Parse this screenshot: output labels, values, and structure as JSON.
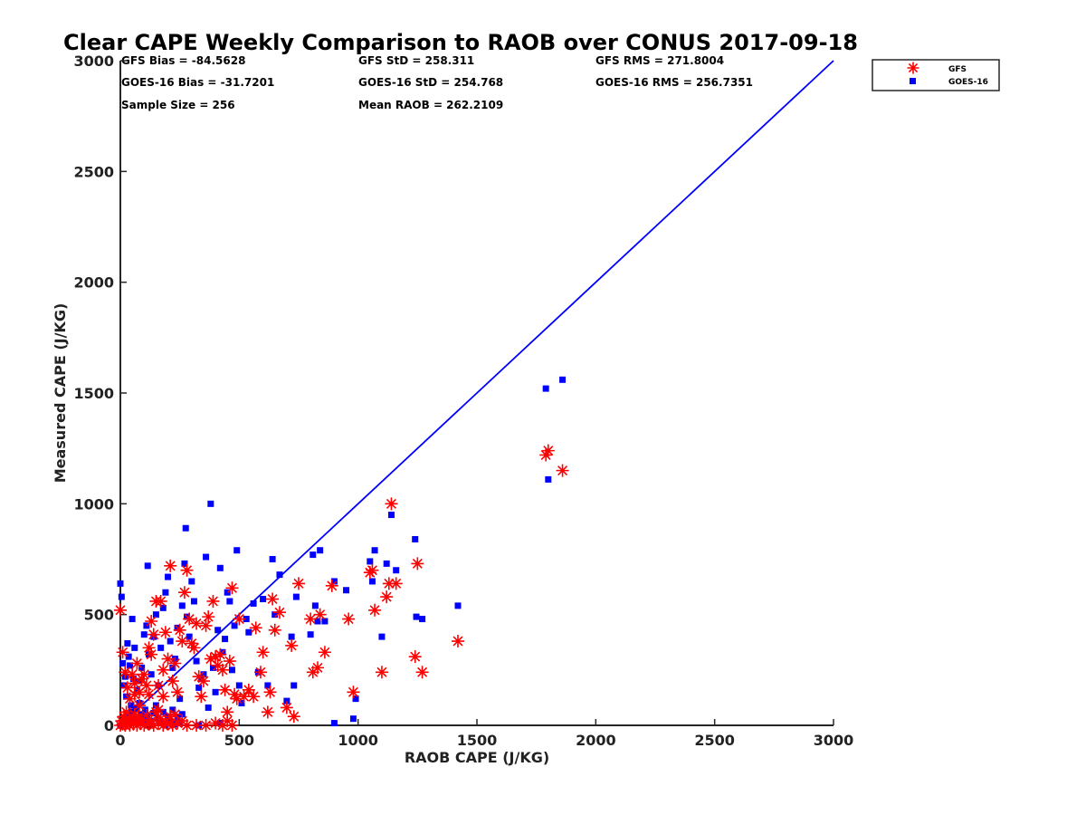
{
  "chart_data": {
    "type": "scatter",
    "title": "Clear CAPE Weekly Comparison to RAOB over CONUS 2017-09-18",
    "xlabel": "RAOB CAPE (J/KG)",
    "ylabel": "Measured CAPE (J/KG)",
    "xlim": [
      0,
      3000
    ],
    "ylim": [
      0,
      3000
    ],
    "xticks": [
      0,
      500,
      1000,
      1500,
      2000,
      2500,
      3000
    ],
    "yticks": [
      0,
      500,
      1000,
      1500,
      2000,
      2500,
      3000
    ],
    "reference_line": {
      "name": "1:1 line",
      "x": [
        0,
        3000
      ],
      "y": [
        0,
        3000
      ],
      "color": "#0000ff"
    },
    "stats": [
      "GFS Bias = -84.5628",
      "GFS StD = 258.311",
      "GFS RMS = 271.8004",
      "GOES-16 Bias = -31.7201",
      "GOES-16 StD = 254.768",
      "GOES-16 RMS = 256.7351",
      "Sample Size = 256",
      "Mean RAOB = 262.2109"
    ],
    "legend_position": "top-right",
    "series": [
      {
        "name": "GFS",
        "marker": "asterisk",
        "color": "#ff0000",
        "points": [
          [
            0,
            0
          ],
          [
            10,
            5
          ],
          [
            20,
            0
          ],
          [
            30,
            10
          ],
          [
            40,
            0
          ],
          [
            55,
            5
          ],
          [
            70,
            0
          ],
          [
            85,
            10
          ],
          [
            100,
            0
          ],
          [
            120,
            5
          ],
          [
            140,
            0
          ],
          [
            160,
            10
          ],
          [
            180,
            0
          ],
          [
            200,
            5
          ],
          [
            220,
            0
          ],
          [
            240,
            10
          ],
          [
            5,
            20
          ],
          [
            15,
            40
          ],
          [
            25,
            60
          ],
          [
            35,
            30
          ],
          [
            45,
            15
          ],
          [
            60,
            50
          ],
          [
            75,
            35
          ],
          [
            90,
            25
          ],
          [
            110,
            45
          ],
          [
            130,
            20
          ],
          [
            150,
            60
          ],
          [
            170,
            30
          ],
          [
            190,
            15
          ],
          [
            210,
            40
          ],
          [
            230,
            50
          ],
          [
            260,
            20
          ],
          [
            280,
            0
          ],
          [
            320,
            0
          ],
          [
            360,
            0
          ],
          [
            400,
            10
          ],
          [
            430,
            0
          ],
          [
            450,
            20
          ],
          [
            470,
            0
          ],
          [
            0,
            520
          ],
          [
            10,
            330
          ],
          [
            20,
            240
          ],
          [
            30,
            170
          ],
          [
            40,
            120
          ],
          [
            50,
            230
          ],
          [
            60,
            190
          ],
          [
            70,
            280
          ],
          [
            80,
            150
          ],
          [
            90,
            210
          ],
          [
            100,
            230
          ],
          [
            110,
            180
          ],
          [
            120,
            140
          ],
          [
            130,
            320
          ],
          [
            140,
            410
          ],
          [
            150,
            560
          ],
          [
            160,
            180
          ],
          [
            170,
            560
          ],
          [
            180,
            250
          ],
          [
            190,
            420
          ],
          [
            200,
            300
          ],
          [
            210,
            720
          ],
          [
            220,
            200
          ],
          [
            230,
            280
          ],
          [
            240,
            150
          ],
          [
            250,
            430
          ],
          [
            260,
            380
          ],
          [
            270,
            600
          ],
          [
            280,
            700
          ],
          [
            290,
            480
          ],
          [
            300,
            370
          ],
          [
            310,
            350
          ],
          [
            320,
            460
          ],
          [
            330,
            220
          ],
          [
            340,
            130
          ],
          [
            350,
            200
          ],
          [
            360,
            450
          ],
          [
            370,
            490
          ],
          [
            380,
            300
          ],
          [
            390,
            560
          ],
          [
            400,
            310
          ],
          [
            410,
            270
          ],
          [
            420,
            320
          ],
          [
            430,
            250
          ],
          [
            440,
            160
          ],
          [
            450,
            60
          ],
          [
            460,
            290
          ],
          [
            470,
            620
          ],
          [
            480,
            140
          ],
          [
            490,
            120
          ],
          [
            500,
            480
          ],
          [
            520,
            130
          ],
          [
            540,
            160
          ],
          [
            560,
            130
          ],
          [
            570,
            440
          ],
          [
            590,
            240
          ],
          [
            600,
            330
          ],
          [
            620,
            60
          ],
          [
            630,
            150
          ],
          [
            640,
            570
          ],
          [
            650,
            430
          ],
          [
            670,
            510
          ],
          [
            700,
            80
          ],
          [
            720,
            360
          ],
          [
            730,
            40
          ],
          [
            750,
            640
          ],
          [
            800,
            480
          ],
          [
            810,
            240
          ],
          [
            830,
            260
          ],
          [
            840,
            500
          ],
          [
            860,
            330
          ],
          [
            890,
            630
          ],
          [
            960,
            480
          ],
          [
            980,
            150
          ],
          [
            1050,
            690
          ],
          [
            1060,
            700
          ],
          [
            1070,
            520
          ],
          [
            1100,
            240
          ],
          [
            1120,
            580
          ],
          [
            1130,
            640
          ],
          [
            1140,
            1000
          ],
          [
            1160,
            640
          ],
          [
            1240,
            310
          ],
          [
            1250,
            730
          ],
          [
            1270,
            240
          ],
          [
            1420,
            380
          ],
          [
            1790,
            1220
          ],
          [
            1800,
            1240
          ],
          [
            1860,
            1150
          ],
          [
            120,
            350
          ],
          [
            130,
            470
          ],
          [
            80,
            90
          ],
          [
            160,
            70
          ],
          [
            180,
            130
          ],
          [
            60,
            140
          ]
        ]
      },
      {
        "name": "GOES-16",
        "marker": "square",
        "color": "#0000ff",
        "points": [
          [
            0,
            0
          ],
          [
            8,
            10
          ],
          [
            16,
            25
          ],
          [
            24,
            5
          ],
          [
            32,
            40
          ],
          [
            40,
            15
          ],
          [
            48,
            60
          ],
          [
            56,
            30
          ],
          [
            64,
            80
          ],
          [
            72,
            20
          ],
          [
            80,
            100
          ],
          [
            88,
            50
          ],
          [
            96,
            10
          ],
          [
            104,
            70
          ],
          [
            112,
            40
          ],
          [
            120,
            0
          ],
          [
            130,
            20
          ],
          [
            140,
            55
          ],
          [
            150,
            90
          ],
          [
            160,
            30
          ],
          [
            170,
            10
          ],
          [
            180,
            60
          ],
          [
            190,
            0
          ],
          [
            200,
            40
          ],
          [
            210,
            15
          ],
          [
            220,
            70
          ],
          [
            230,
            5
          ],
          [
            240,
            35
          ],
          [
            250,
            10
          ],
          [
            260,
            50
          ],
          [
            0,
            640
          ],
          [
            5,
            580
          ],
          [
            10,
            280
          ],
          [
            15,
            180
          ],
          [
            20,
            220
          ],
          [
            25,
            130
          ],
          [
            30,
            370
          ],
          [
            35,
            310
          ],
          [
            40,
            270
          ],
          [
            45,
            90
          ],
          [
            50,
            480
          ],
          [
            55,
            210
          ],
          [
            60,
            350
          ],
          [
            70,
            160
          ],
          [
            80,
            200
          ],
          [
            90,
            260
          ],
          [
            100,
            410
          ],
          [
            110,
            450
          ],
          [
            115,
            720
          ],
          [
            120,
            320
          ],
          [
            130,
            230
          ],
          [
            140,
            400
          ],
          [
            150,
            500
          ],
          [
            160,
            180
          ],
          [
            170,
            350
          ],
          [
            180,
            530
          ],
          [
            190,
            600
          ],
          [
            200,
            670
          ],
          [
            210,
            380
          ],
          [
            220,
            260
          ],
          [
            230,
            300
          ],
          [
            240,
            440
          ],
          [
            250,
            120
          ],
          [
            260,
            540
          ],
          [
            270,
            730
          ],
          [
            275,
            890
          ],
          [
            280,
            490
          ],
          [
            290,
            400
          ],
          [
            300,
            650
          ],
          [
            310,
            560
          ],
          [
            320,
            290
          ],
          [
            330,
            170
          ],
          [
            340,
            210
          ],
          [
            350,
            230
          ],
          [
            360,
            760
          ],
          [
            370,
            80
          ],
          [
            380,
            1000
          ],
          [
            390,
            260
          ],
          [
            400,
            150
          ],
          [
            410,
            430
          ],
          [
            420,
            710
          ],
          [
            430,
            330
          ],
          [
            440,
            390
          ],
          [
            450,
            600
          ],
          [
            460,
            560
          ],
          [
            470,
            250
          ],
          [
            480,
            450
          ],
          [
            490,
            790
          ],
          [
            500,
            180
          ],
          [
            510,
            100
          ],
          [
            530,
            480
          ],
          [
            540,
            420
          ],
          [
            560,
            550
          ],
          [
            580,
            240
          ],
          [
            600,
            570
          ],
          [
            620,
            180
          ],
          [
            640,
            750
          ],
          [
            650,
            500
          ],
          [
            670,
            680
          ],
          [
            700,
            110
          ],
          [
            720,
            400
          ],
          [
            730,
            180
          ],
          [
            740,
            580
          ],
          [
            800,
            410
          ],
          [
            810,
            770
          ],
          [
            820,
            540
          ],
          [
            830,
            470
          ],
          [
            840,
            790
          ],
          [
            860,
            470
          ],
          [
            900,
            650
          ],
          [
            950,
            610
          ],
          [
            990,
            120
          ],
          [
            1050,
            740
          ],
          [
            1060,
            650
          ],
          [
            1070,
            790
          ],
          [
            1100,
            400
          ],
          [
            1120,
            730
          ],
          [
            1140,
            950
          ],
          [
            1160,
            700
          ],
          [
            1240,
            840
          ],
          [
            1245,
            490
          ],
          [
            1270,
            480
          ],
          [
            1420,
            540
          ],
          [
            1790,
            1520
          ],
          [
            1800,
            1110
          ],
          [
            1860,
            1560
          ],
          [
            900,
            10
          ],
          [
            980,
            30
          ],
          [
            330,
            0
          ],
          [
            420,
            10
          ]
        ]
      }
    ]
  }
}
